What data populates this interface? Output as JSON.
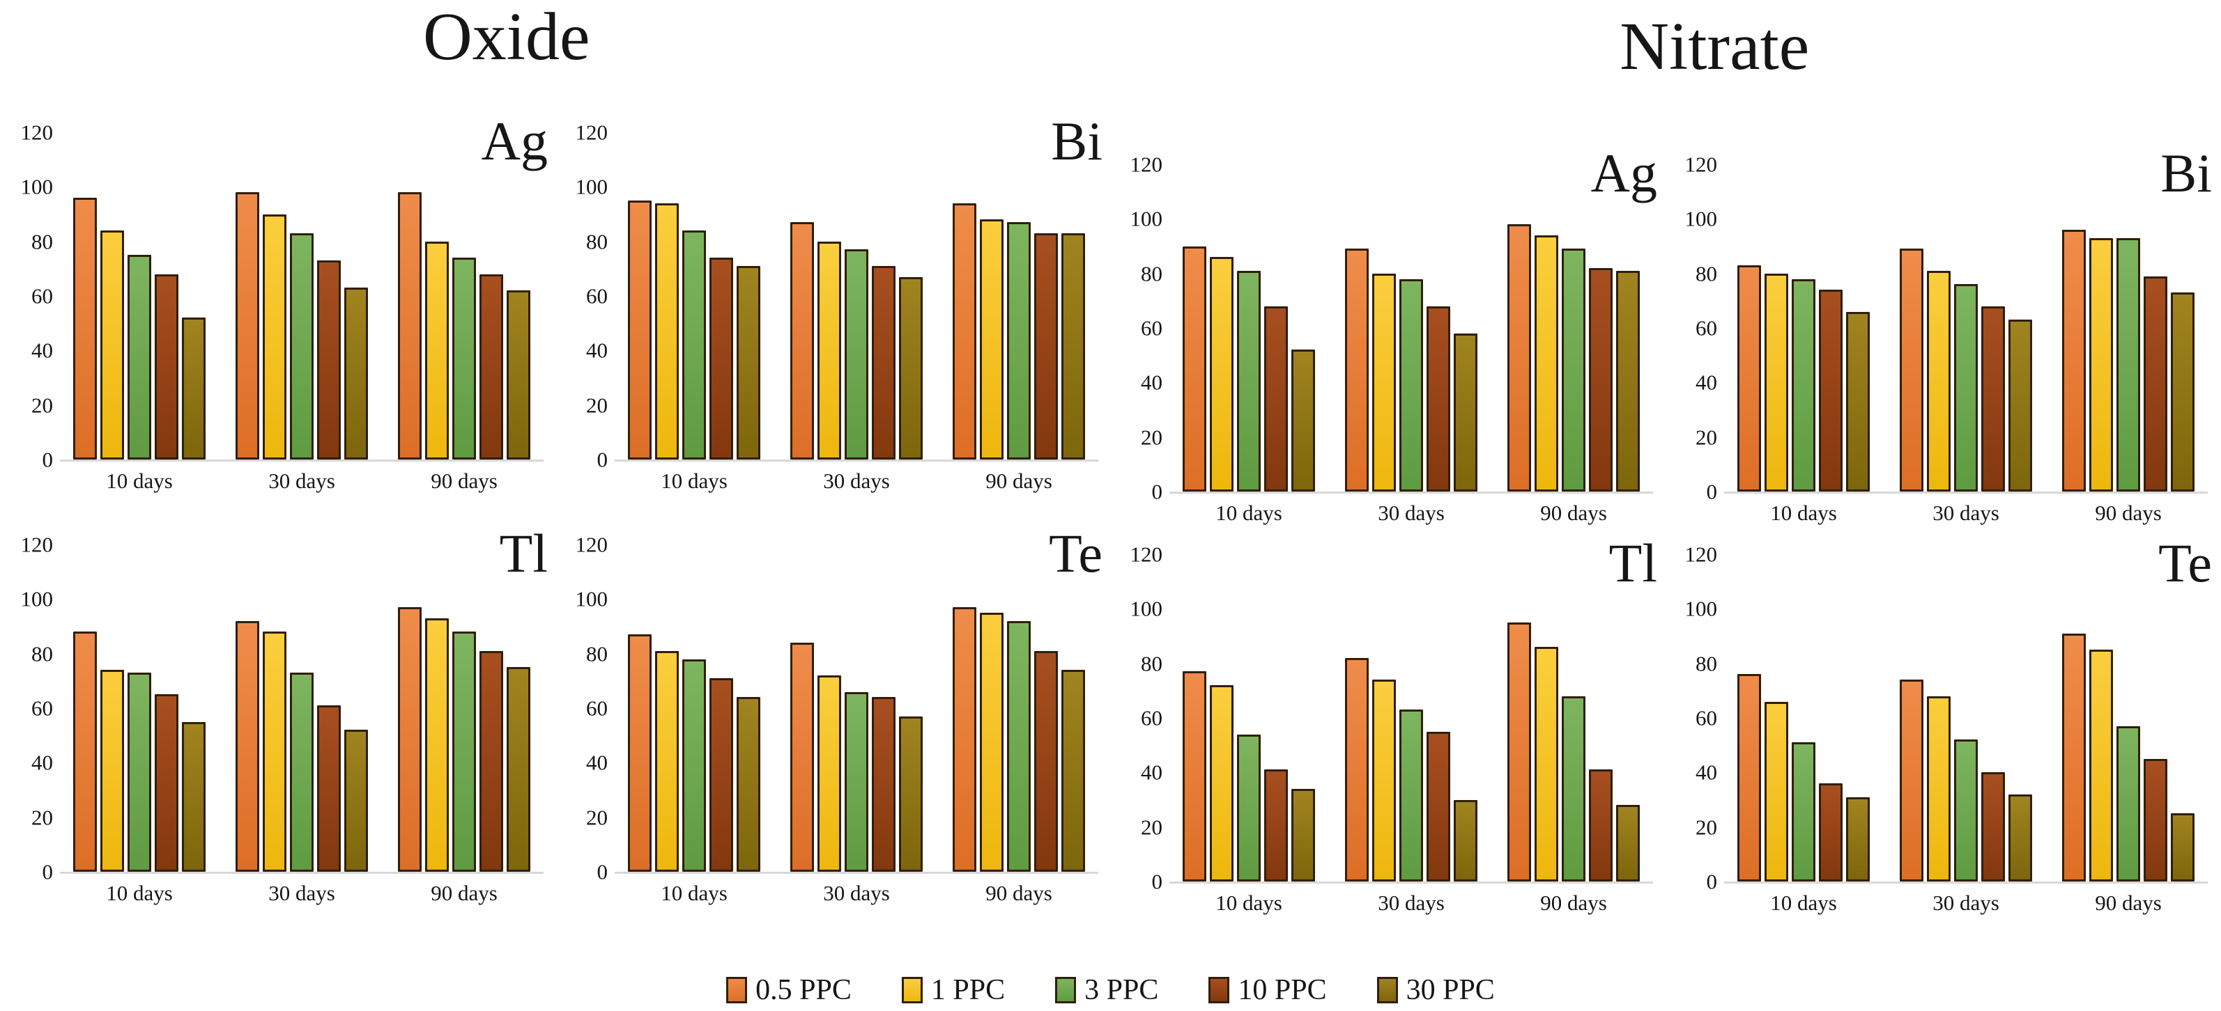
{
  "figure": {
    "background": "#FFFFFF",
    "text_color": "#161616",
    "baseline_color": "#D8D8D8",
    "bar_border_color": "#301F0A"
  },
  "group_titles": [
    {
      "label": "Oxide"
    },
    {
      "label": "Nitrate"
    }
  ],
  "legend": {
    "position": "bottom-center",
    "items": [
      {
        "label": "0.5 PPC",
        "color": "#E87C35",
        "color_top": "#EF8C4A",
        "color_bottom": "#DD6E26"
      },
      {
        "label": "1 PPC",
        "color": "#F5C21D",
        "color_top": "#FACE3E",
        "color_bottom": "#EEB70D"
      },
      {
        "label": "3 PPC",
        "color": "#6EA84F",
        "color_top": "#7EB55F",
        "color_bottom": "#5F9B41"
      },
      {
        "label": "10 PPC",
        "color": "#97431A",
        "color_top": "#A84F20",
        "color_bottom": "#83380E"
      },
      {
        "label": "30 PPC",
        "color": "#8E7414",
        "color_top": "#A0841F",
        "color_bottom": "#7D660B"
      }
    ]
  },
  "axis": {
    "ticks": [
      0,
      20,
      40,
      60,
      80,
      100,
      120
    ],
    "ylim": [
      0,
      120
    ],
    "categories": [
      "10 days",
      "30 days",
      "90 days"
    ],
    "grid": false
  },
  "chart_data": [
    {
      "type": "bar",
      "group": "Oxide",
      "title": "Ag",
      "categories": [
        "10 days",
        "30 days",
        "90 days"
      ],
      "ylim": [
        0,
        120
      ],
      "series": [
        {
          "name": "0.5 PPC",
          "values": [
            96,
            98,
            98
          ]
        },
        {
          "name": "1 PPC",
          "values": [
            84,
            90,
            80
          ]
        },
        {
          "name": "3 PPC",
          "values": [
            75,
            83,
            74
          ]
        },
        {
          "name": "10 PPC",
          "values": [
            68,
            73,
            68
          ]
        },
        {
          "name": "30 PPC",
          "values": [
            52,
            63,
            62
          ]
        }
      ]
    },
    {
      "type": "bar",
      "group": "Oxide",
      "title": "Bi",
      "categories": [
        "10 days",
        "30 days",
        "90 days"
      ],
      "ylim": [
        0,
        120
      ],
      "series": [
        {
          "name": "0.5 PPC",
          "values": [
            95,
            87,
            94
          ]
        },
        {
          "name": "1 PPC",
          "values": [
            94,
            80,
            88
          ]
        },
        {
          "name": "3 PPC",
          "values": [
            84,
            77,
            87
          ]
        },
        {
          "name": "10 PPC",
          "values": [
            74,
            71,
            83
          ]
        },
        {
          "name": "30 PPC",
          "values": [
            71,
            67,
            83
          ]
        }
      ]
    },
    {
      "type": "bar",
      "group": "Nitrate",
      "title": "Ag",
      "categories": [
        "10 days",
        "30 days",
        "90 days"
      ],
      "ylim": [
        0,
        120
      ],
      "series": [
        {
          "name": "0.5 PPC",
          "values": [
            90,
            89,
            98
          ]
        },
        {
          "name": "1 PPC",
          "values": [
            86,
            80,
            94
          ]
        },
        {
          "name": "3 PPC",
          "values": [
            81,
            78,
            89
          ]
        },
        {
          "name": "10 PPC",
          "values": [
            68,
            68,
            82
          ]
        },
        {
          "name": "30 PPC",
          "values": [
            52,
            58,
            81
          ]
        }
      ]
    },
    {
      "type": "bar",
      "group": "Nitrate",
      "title": "Bi",
      "categories": [
        "10 days",
        "30 days",
        "90 days"
      ],
      "ylim": [
        0,
        120
      ],
      "series": [
        {
          "name": "0.5 PPC",
          "values": [
            83,
            89,
            96
          ]
        },
        {
          "name": "1 PPC",
          "values": [
            80,
            81,
            93
          ]
        },
        {
          "name": "3 PPC",
          "values": [
            78,
            76,
            93
          ]
        },
        {
          "name": "10 PPC",
          "values": [
            74,
            68,
            79
          ]
        },
        {
          "name": "30 PPC",
          "values": [
            66,
            63,
            73
          ]
        }
      ]
    },
    {
      "type": "bar",
      "group": "Oxide",
      "title": "Tl",
      "categories": [
        "10 days",
        "30 days",
        "90 days"
      ],
      "ylim": [
        0,
        120
      ],
      "series": [
        {
          "name": "0.5 PPC",
          "values": [
            88,
            92,
            97
          ]
        },
        {
          "name": "1 PPC",
          "values": [
            74,
            88,
            93
          ]
        },
        {
          "name": "3 PPC",
          "values": [
            73,
            73,
            88
          ]
        },
        {
          "name": "10 PPC",
          "values": [
            65,
            61,
            81
          ]
        },
        {
          "name": "30 PPC",
          "values": [
            55,
            52,
            75
          ]
        }
      ]
    },
    {
      "type": "bar",
      "group": "Oxide",
      "title": "Te",
      "categories": [
        "10 days",
        "30 days",
        "90 days"
      ],
      "ylim": [
        0,
        120
      ],
      "series": [
        {
          "name": "0.5 PPC",
          "values": [
            87,
            84,
            97
          ]
        },
        {
          "name": "1 PPC",
          "values": [
            81,
            72,
            95
          ]
        },
        {
          "name": "3 PPC",
          "values": [
            78,
            66,
            92
          ]
        },
        {
          "name": "10 PPC",
          "values": [
            71,
            64,
            81
          ]
        },
        {
          "name": "30 PPC",
          "values": [
            64,
            57,
            74
          ]
        }
      ]
    },
    {
      "type": "bar",
      "group": "Nitrate",
      "title": "Tl",
      "categories": [
        "10 days",
        "30 days",
        "90 days"
      ],
      "ylim": [
        0,
        120
      ],
      "series": [
        {
          "name": "0.5 PPC",
          "values": [
            77,
            82,
            95
          ]
        },
        {
          "name": "1 PPC",
          "values": [
            72,
            74,
            86
          ]
        },
        {
          "name": "3 PPC",
          "values": [
            54,
            63,
            68
          ]
        },
        {
          "name": "10 PPC",
          "values": [
            41,
            55,
            41
          ]
        },
        {
          "name": "30 PPC",
          "values": [
            34,
            30,
            28
          ]
        }
      ]
    },
    {
      "type": "bar",
      "group": "Nitrate",
      "title": "Te",
      "categories": [
        "10 days",
        "30 days",
        "90 days"
      ],
      "ylim": [
        0,
        120
      ],
      "series": [
        {
          "name": "0.5 PPC",
          "values": [
            76,
            74,
            91
          ]
        },
        {
          "name": "1 PPC",
          "values": [
            66,
            68,
            85
          ]
        },
        {
          "name": "3 PPC",
          "values": [
            51,
            52,
            57
          ]
        },
        {
          "name": "10 PPC",
          "values": [
            36,
            40,
            45
          ]
        },
        {
          "name": "30 PPC",
          "values": [
            31,
            32,
            25
          ]
        }
      ]
    }
  ]
}
